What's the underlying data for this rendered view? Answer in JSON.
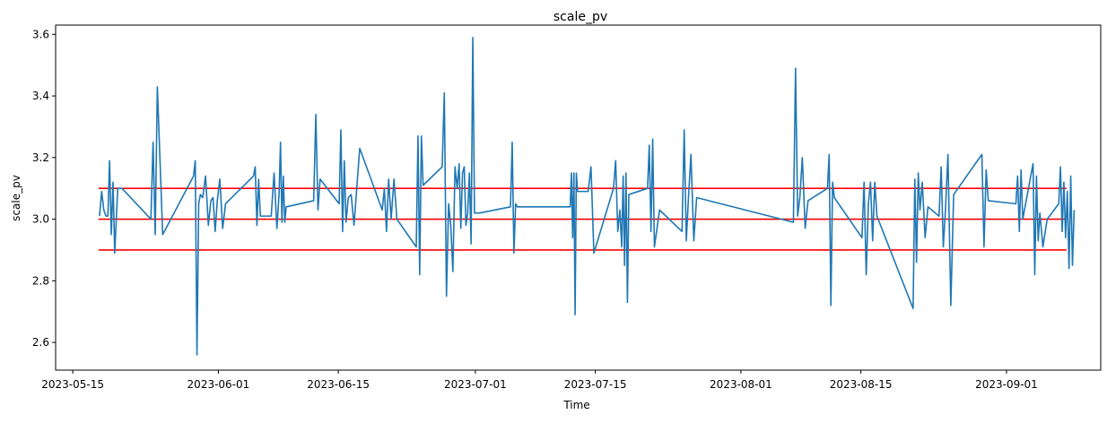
{
  "chart_data": {
    "type": "line",
    "title": "scale_pv",
    "xlabel": "Time",
    "ylabel": "scale_pv",
    "x_axis_type": "date",
    "xlim": [
      "2023-05-13",
      "2023-09-12"
    ],
    "ylim": [
      2.51,
      3.63
    ],
    "x_ticks": [
      "2023-05-15",
      "2023-06-01",
      "2023-06-15",
      "2023-07-01",
      "2023-07-15",
      "2023-08-01",
      "2023-08-15",
      "2023-09-01"
    ],
    "y_ticks": [
      2.6,
      2.8,
      3.0,
      3.2,
      3.4,
      3.6
    ],
    "grid": false,
    "legend": "none",
    "colors": {
      "series": "#1f77b4",
      "reference_lines": "#ff0000"
    },
    "reference_lines": [
      {
        "y": 3.1,
        "x_start": "2023-05-18",
        "x_end": "2023-09-08"
      },
      {
        "y": 3.0,
        "x_start": "2023-05-18",
        "x_end": "2023-09-08"
      },
      {
        "y": 2.9,
        "x_start": "2023-05-18",
        "x_end": "2023-09-08"
      }
    ],
    "series": [
      {
        "x": [
          "2023-05-18",
          "2023-05-18",
          "2023-05-18",
          "2023-05-18",
          "2023-05-19",
          "2023-05-19",
          "2023-05-19",
          "2023-05-19",
          "2023-05-19",
          "2023-05-20",
          "2023-05-20",
          "2023-05-24",
          "2023-05-24",
          "2023-05-24",
          "2023-05-24",
          "2023-05-25",
          "2023-05-29",
          "2023-05-29",
          "2023-05-29",
          "2023-05-29",
          "2023-05-29",
          "2023-05-30",
          "2023-05-30",
          "2023-05-30",
          "2023-05-31",
          "2023-05-31",
          "2023-05-31",
          "2023-05-31",
          "2023-06-01",
          "2023-06-01",
          "2023-06-01",
          "2023-06-05",
          "2023-06-05",
          "2023-06-05",
          "2023-06-05",
          "2023-06-05",
          "2023-06-07",
          "2023-06-07",
          "2023-06-07",
          "2023-06-08",
          "2023-06-08",
          "2023-06-08",
          "2023-06-08",
          "2023-06-08",
          "2023-06-08",
          "2023-06-12",
          "2023-06-12",
          "2023-06-12",
          "2023-06-12",
          "2023-06-15",
          "2023-06-15",
          "2023-06-15",
          "2023-06-15",
          "2023-06-15",
          "2023-06-16",
          "2023-06-16",
          "2023-06-16",
          "2023-06-17",
          "2023-06-20",
          "2023-06-20",
          "2023-06-20",
          "2023-06-20",
          "2023-06-21",
          "2023-06-21",
          "2023-06-21",
          "2023-06-24",
          "2023-06-24",
          "2023-06-24",
          "2023-06-24",
          "2023-06-24",
          "2023-06-27",
          "2023-06-27",
          "2023-06-27",
          "2023-06-27",
          "2023-06-28",
          "2023-06-28",
          "2023-06-28",
          "2023-06-28",
          "2023-06-29",
          "2023-06-29",
          "2023-06-29",
          "2023-06-29",
          "2023-06-29",
          "2023-06-30",
          "2023-06-30",
          "2023-06-30",
          "2023-06-30",
          "2023-06-30",
          "2023-07-01",
          "2023-07-05",
          "2023-07-05",
          "2023-07-05",
          "2023-07-05",
          "2023-07-05",
          "2023-07-12",
          "2023-07-12",
          "2023-07-12",
          "2023-07-12",
          "2023-07-12",
          "2023-07-12",
          "2023-07-12",
          "2023-07-14",
          "2023-07-14",
          "2023-07-14",
          "2023-07-17",
          "2023-07-17",
          "2023-07-17",
          "2023-07-17",
          "2023-07-18",
          "2023-07-18",
          "2023-07-18",
          "2023-07-18",
          "2023-07-18",
          "2023-07-18",
          "2023-07-21",
          "2023-07-21",
          "2023-07-21",
          "2023-07-21",
          "2023-07-21",
          "2023-07-22",
          "2023-07-25",
          "2023-07-25",
          "2023-07-25",
          "2023-07-25",
          "2023-07-26",
          "2023-07-26",
          "2023-07-26",
          "2023-08-07",
          "2023-08-07",
          "2023-08-07",
          "2023-08-07",
          "2023-08-08",
          "2023-08-08",
          "2023-08-08",
          "2023-08-11",
          "2023-08-11",
          "2023-08-11",
          "2023-08-11",
          "2023-08-11",
          "2023-08-15",
          "2023-08-15",
          "2023-08-15",
          "2023-08-15",
          "2023-08-16",
          "2023-08-16",
          "2023-08-16",
          "2023-08-16",
          "2023-08-21",
          "2023-08-21",
          "2023-08-21",
          "2023-08-21",
          "2023-08-21",
          "2023-08-22",
          "2023-08-22",
          "2023-08-22",
          "2023-08-24",
          "2023-08-24",
          "2023-08-24",
          "2023-08-24",
          "2023-08-25",
          "2023-08-25",
          "2023-08-25",
          "2023-08-29",
          "2023-08-29",
          "2023-08-29",
          "2023-08-29",
          "2023-09-02",
          "2023-09-02",
          "2023-09-02",
          "2023-09-02",
          "2023-09-02",
          "2023-09-04",
          "2023-09-04",
          "2023-09-04",
          "2023-09-04",
          "2023-09-04",
          "2023-09-05",
          "2023-09-05",
          "2023-09-07",
          "2023-09-07",
          "2023-09-07",
          "2023-09-07",
          "2023-09-07",
          "2023-09-08",
          "2023-09-08",
          "2023-09-08",
          "2023-09-08",
          "2023-09-08"
        ],
        "y": [
          3.01,
          3.09,
          3.03,
          3.01,
          3.01,
          3.19,
          2.95,
          3.12,
          2.89,
          3.1,
          3.1,
          3.0,
          3.25,
          2.95,
          3.43,
          2.95,
          3.14,
          3.19,
          2.56,
          3.05,
          3.08,
          3.07,
          3.14,
          2.98,
          3.06,
          3.07,
          2.96,
          3.06,
          3.13,
          2.97,
          3.05,
          3.14,
          3.17,
          2.98,
          3.13,
          3.01,
          3.01,
          3.15,
          2.97,
          3.08,
          3.25,
          2.99,
          3.14,
          2.99,
          3.04,
          3.06,
          3.34,
          3.03,
          3.13,
          3.05,
          3.29,
          2.96,
          3.19,
          2.99,
          3.07,
          3.08,
          2.98,
          3.23,
          3.03,
          3.1,
          2.96,
          3.13,
          3.0,
          3.13,
          3.0,
          2.91,
          3.27,
          2.82,
          3.27,
          3.11,
          3.17,
          3.41,
          2.75,
          3.05,
          2.98,
          2.83,
          3.17,
          3.1,
          3.18,
          2.97,
          3.15,
          3.17,
          2.98,
          3.02,
          3.15,
          2.92,
          3.59,
          3.02,
          3.02,
          3.04,
          3.25,
          2.89,
          3.05,
          3.04,
          3.04,
          3.15,
          2.94,
          3.15,
          2.69,
          3.15,
          3.09,
          3.09,
          3.17,
          2.89,
          3.1,
          3.19,
          2.96,
          3.03,
          2.91,
          3.14,
          2.85,
          3.15,
          2.73,
          3.08,
          3.1,
          3.24,
          2.96,
          3.26,
          2.91,
          3.03,
          2.96,
          3.29,
          2.93,
          3.07,
          3.21,
          2.93,
          3.07,
          2.99,
          3.49,
          3.01,
          3.07,
          3.2,
          2.97,
          3.06,
          3.1,
          3.21,
          2.72,
          3.12,
          3.07,
          2.94,
          3.12,
          2.82,
          3.05,
          3.12,
          2.93,
          3.12,
          3.01,
          2.71,
          3.13,
          2.86,
          3.15,
          3.03,
          3.12,
          2.94,
          3.04,
          3.01,
          3.17,
          2.91,
          3.03,
          3.21,
          2.72,
          3.08,
          3.21,
          2.91,
          3.16,
          3.06,
          3.05,
          3.14,
          2.96,
          3.16,
          3.0,
          3.18,
          2.82,
          3.14,
          2.93,
          3.02,
          2.91,
          3.0,
          3.05,
          3.17,
          2.96,
          3.12,
          2.94,
          3.09,
          2.84,
          3.14,
          2.85,
          3.03
        ]
      }
    ]
  }
}
